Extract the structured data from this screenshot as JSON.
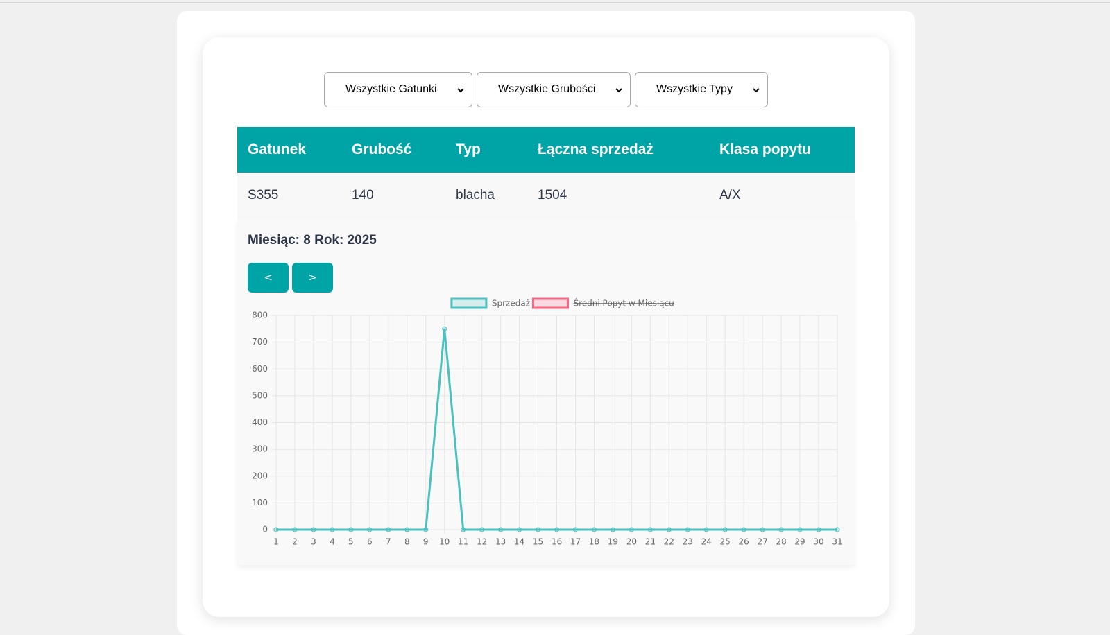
{
  "filters": [
    "Wszystkie Gatunki",
    "Wszystkie Grubości",
    "Wszystkie Typy"
  ],
  "table": {
    "headers": [
      "Gatunek",
      "Grubość",
      "Typ",
      "Łączna sprzedaż",
      "Klasa popytu"
    ],
    "rows": [
      [
        "S355",
        "140",
        "blacha",
        "1504",
        "A/X"
      ]
    ]
  },
  "period": "Miesiąc: 8 Rok: 2025",
  "buttons": [
    "<",
    ">"
  ],
  "chart_data": {
    "type": "line",
    "x": [
      1,
      2,
      3,
      4,
      5,
      6,
      7,
      8,
      9,
      10,
      11,
      12,
      13,
      14,
      15,
      16,
      17,
      18,
      19,
      20,
      21,
      22,
      23,
      24,
      25,
      26,
      27,
      28,
      29,
      30,
      31
    ],
    "xlim": [
      1,
      31
    ],
    "xticks": [
      1,
      2,
      3,
      4,
      5,
      6,
      7,
      8,
      9,
      10,
      11,
      12,
      13,
      14,
      15,
      16,
      17,
      18,
      19,
      20,
      21,
      22,
      23,
      24,
      25,
      26,
      27,
      28,
      29,
      30,
      31
    ],
    "ylim": [
      0,
      800
    ],
    "yticks": [
      0,
      100,
      200,
      300,
      400,
      500,
      600,
      700,
      800
    ],
    "grid": true,
    "series": [
      {
        "name": "Sprzedaż",
        "color": "#4bc0c0",
        "values": [
          0,
          0,
          0,
          0,
          0,
          0,
          0,
          0,
          0,
          750,
          0,
          0,
          0,
          0,
          0,
          0,
          0,
          0,
          0,
          0,
          0,
          0,
          0,
          0,
          0,
          0,
          0,
          0,
          0,
          0,
          0
        ]
      },
      {
        "name": "Średni Popyt w Miesiącu",
        "color": "#ff6384",
        "hidden": true
      }
    ]
  }
}
